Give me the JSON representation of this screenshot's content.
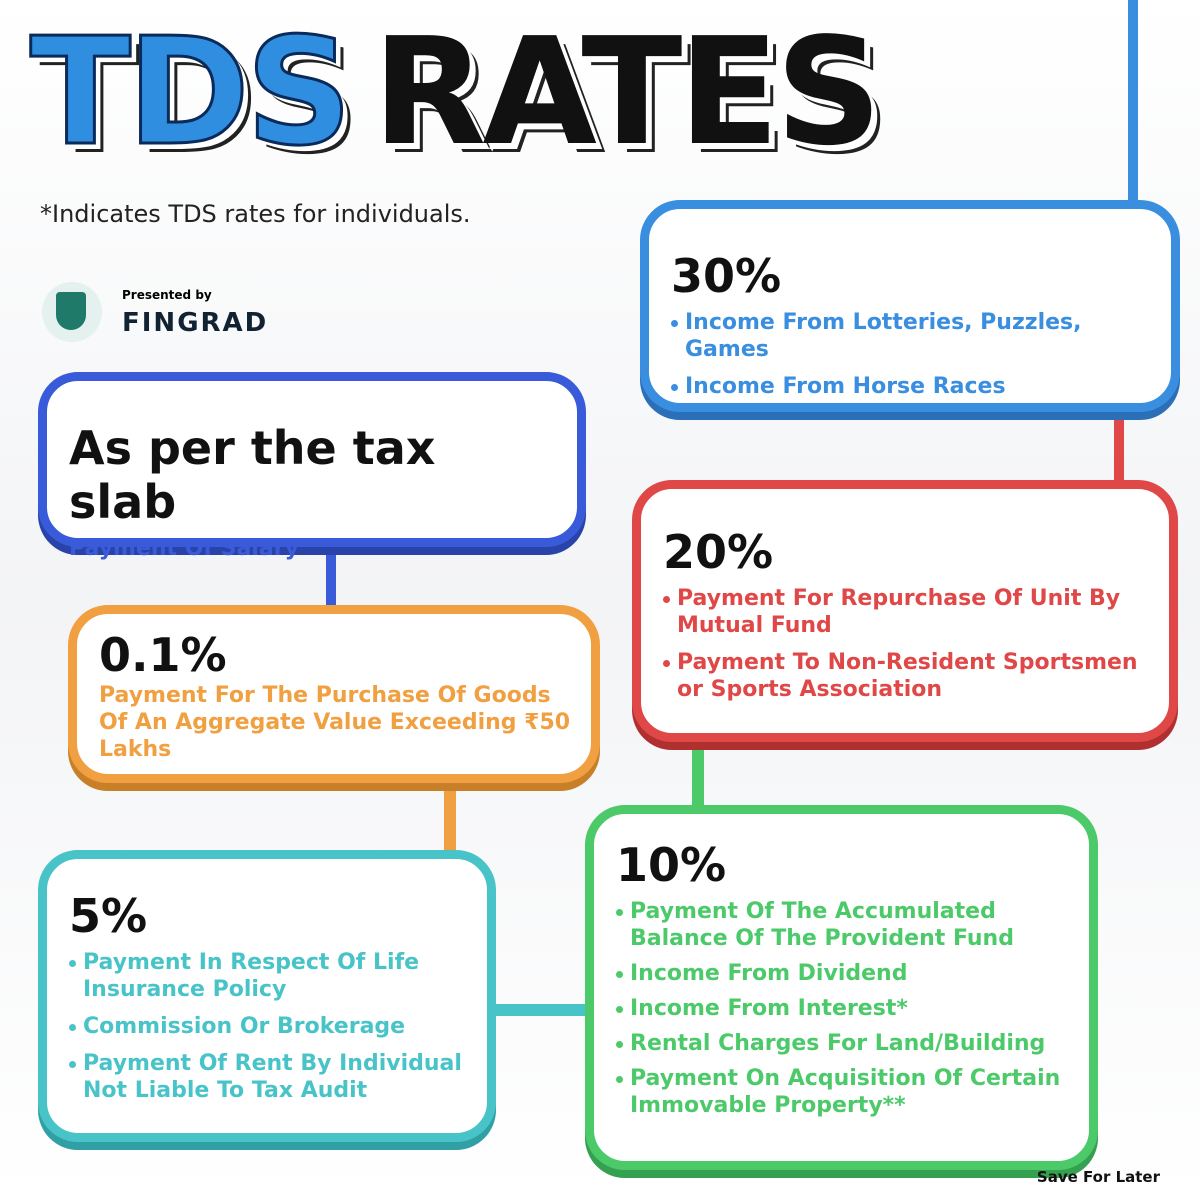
{
  "title": {
    "part1": "TDS",
    "part2": "RATES"
  },
  "note": "*Indicates TDS rates for individuals.",
  "brand": {
    "presented": "Presented by",
    "name": "FINGRAD"
  },
  "boxes": [
    {
      "rate": "30%",
      "items": [
        "Income From Lotteries, Puzzles, Games",
        "Income From Horse Races"
      ]
    },
    {
      "rate": "As per the tax slab",
      "items": [
        "Payment Of Salary"
      ]
    },
    {
      "rate": "20%",
      "items": [
        "Payment For Repurchase Of Unit By Mutual Fund",
        "Payment To Non-Resident Sportsmen or Sports Association"
      ]
    },
    {
      "rate": "0.1%",
      "items": [
        "Payment For The Purchase Of Goods Of An Aggregate Value Exceeding ₹50 Lakhs"
      ]
    },
    {
      "rate": "10%",
      "items": [
        "Payment Of The Accumulated Balance Of The Provident Fund",
        "Income From Dividend",
        "Income From Interest*",
        "Rental Charges For Land/Building",
        "Payment On Acquisition Of Certain Immovable Property**"
      ]
    },
    {
      "rate": "5%",
      "items": [
        "Payment In Respect Of Life Insurance Policy",
        "Commission Or Brokerage",
        "Payment Of Rent By Individual Not Liable To Tax Audit"
      ]
    }
  ],
  "footer": "Save For Later"
}
